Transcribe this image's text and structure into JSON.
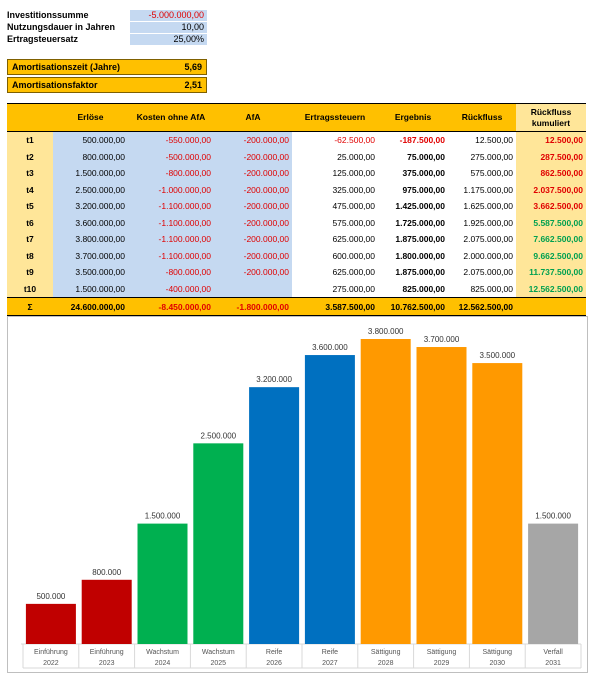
{
  "params": {
    "rows": [
      {
        "label": "Investitionssumme",
        "value": "-5.000.000,00",
        "negative": true
      },
      {
        "label": "Nutzungsdauer in Jahren",
        "value": "10,00",
        "negative": false
      },
      {
        "label": "Ertragsteuersatz",
        "value": "25,00%",
        "negative": false
      }
    ]
  },
  "amortisation": {
    "zeit_label": "Amortisationszeit (Jahre)",
    "zeit_value": "5,69",
    "faktor_label": "Amortisationsfaktor",
    "faktor_value": "2,51"
  },
  "table": {
    "headers": [
      "",
      "Erlöse",
      "Kosten ohne AfA",
      "AfA",
      "Ertragssteuern",
      "Ergebnis",
      "Rückfluss",
      "Rückfluss kumuliert"
    ],
    "rows": [
      {
        "t": "t1",
        "erloese": "500.000,00",
        "kosten": "-550.000,00",
        "afa": "-200.000,00",
        "steuern": "-62.500,00",
        "ergebnis": "-187.500,00",
        "rueckfluss": "12.500,00",
        "kumuliert": "12.500,00"
      },
      {
        "t": "t2",
        "erloese": "800.000,00",
        "kosten": "-500.000,00",
        "afa": "-200.000,00",
        "steuern": "25.000,00",
        "ergebnis": "75.000,00",
        "rueckfluss": "275.000,00",
        "kumuliert": "287.500,00"
      },
      {
        "t": "t3",
        "erloese": "1.500.000,00",
        "kosten": "-800.000,00",
        "afa": "-200.000,00",
        "steuern": "125.000,00",
        "ergebnis": "375.000,00",
        "rueckfluss": "575.000,00",
        "kumuliert": "862.500,00"
      },
      {
        "t": "t4",
        "erloese": "2.500.000,00",
        "kosten": "-1.000.000,00",
        "afa": "-200.000,00",
        "steuern": "325.000,00",
        "ergebnis": "975.000,00",
        "rueckfluss": "1.175.000,00",
        "kumuliert": "2.037.500,00"
      },
      {
        "t": "t5",
        "erloese": "3.200.000,00",
        "kosten": "-1.100.000,00",
        "afa": "-200.000,00",
        "steuern": "475.000,00",
        "ergebnis": "1.425.000,00",
        "rueckfluss": "1.625.000,00",
        "kumuliert": "3.662.500,00"
      },
      {
        "t": "t6",
        "erloese": "3.600.000,00",
        "kosten": "-1.100.000,00",
        "afa": "-200.000,00",
        "steuern": "575.000,00",
        "ergebnis": "1.725.000,00",
        "rueckfluss": "1.925.000,00",
        "kumuliert": "5.587.500,00"
      },
      {
        "t": "t7",
        "erloese": "3.800.000,00",
        "kosten": "-1.100.000,00",
        "afa": "-200.000,00",
        "steuern": "625.000,00",
        "ergebnis": "1.875.000,00",
        "rueckfluss": "2.075.000,00",
        "kumuliert": "7.662.500,00"
      },
      {
        "t": "t8",
        "erloese": "3.700.000,00",
        "kosten": "-1.100.000,00",
        "afa": "-200.000,00",
        "steuern": "600.000,00",
        "ergebnis": "1.800.000,00",
        "rueckfluss": "2.000.000,00",
        "kumuliert": "9.662.500,00"
      },
      {
        "t": "t9",
        "erloese": "3.500.000,00",
        "kosten": "-800.000,00",
        "afa": "-200.000,00",
        "steuern": "625.000,00",
        "ergebnis": "1.875.000,00",
        "rueckfluss": "2.075.000,00",
        "kumuliert": "11.737.500,00"
      },
      {
        "t": "t10",
        "erloese": "1.500.000,00",
        "kosten": "-400.000,00",
        "afa": "",
        "steuern": "275.000,00",
        "ergebnis": "825.000,00",
        "rueckfluss": "825.000,00",
        "kumuliert": "12.562.500,00"
      }
    ],
    "sum": {
      "t": "Σ",
      "erloese": "24.600.000,00",
      "kosten": "-8.450.000,00",
      "afa": "-1.800.000,00",
      "steuern": "3.587.500,00",
      "ergebnis": "10.762.500,00",
      "rueckfluss": "12.562.500,00",
      "kumuliert": ""
    }
  },
  "colors": {
    "red": "#e00000",
    "green": "#00a050",
    "einfuehrung": "#c00000",
    "wachstum": "#00b050",
    "reife": "#0070c0",
    "saettigung": "#ff9900",
    "verfall": "#a6a6a6"
  },
  "chart_data": {
    "type": "bar",
    "categories": [
      "Einführung 2022",
      "Einführung 2023",
      "Wachstum 2024",
      "Wachstum 2025",
      "Reife 2026",
      "Reife 2027",
      "Sättigung 2028",
      "Sättigung 2029",
      "Sättigung 2030",
      "Verfall 2031"
    ],
    "phases": [
      "Einführung",
      "Einführung",
      "Wachstum",
      "Wachstum",
      "Reife",
      "Reife",
      "Sättigung",
      "Sättigung",
      "Sättigung",
      "Verfall"
    ],
    "years": [
      "2022",
      "2023",
      "2024",
      "2025",
      "2026",
      "2027",
      "2028",
      "2029",
      "2030",
      "2031"
    ],
    "values": [
      500000,
      800000,
      1500000,
      2500000,
      3200000,
      3600000,
      3800000,
      3700000,
      3500000,
      1500000
    ],
    "labels": [
      "500.000",
      "800.000",
      "1.500.000",
      "2.500.000",
      "3.200.000",
      "3.600.000",
      "3.800.000",
      "3.700.000",
      "3.500.000",
      "1.500.000"
    ],
    "colors": [
      "#c00000",
      "#c00000",
      "#00b050",
      "#00b050",
      "#0070c0",
      "#0070c0",
      "#ff9900",
      "#ff9900",
      "#ff9900",
      "#a6a6a6"
    ],
    "ylim": [
      0,
      3800000
    ],
    "grid": false,
    "legend": "none"
  }
}
